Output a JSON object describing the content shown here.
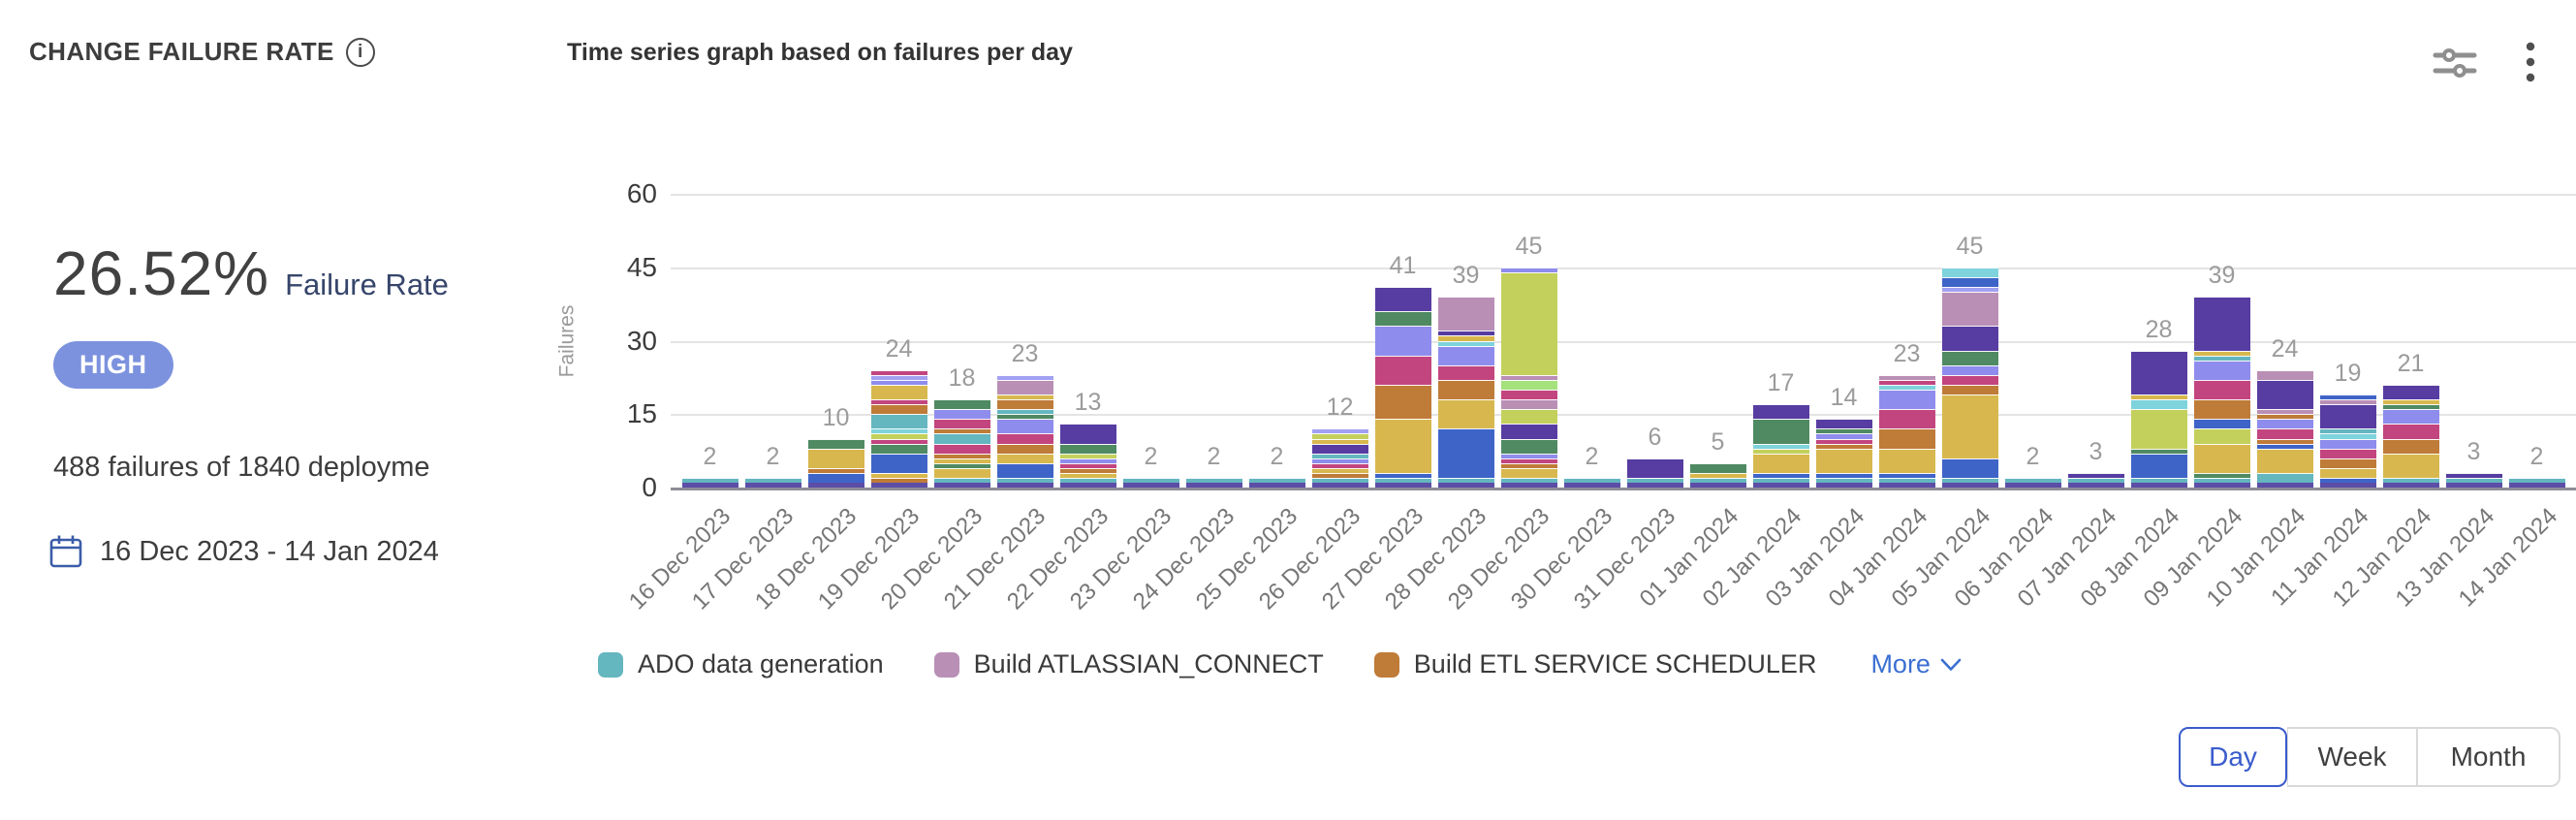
{
  "header": {
    "title": "CHANGE FAILURE RATE",
    "subtitle": "Time series graph based on failures per day"
  },
  "stats": {
    "rate_value": "26.52%",
    "rate_label": "Failure Rate",
    "severity": "HIGH",
    "severity_color": "#7c92de",
    "summary": "488 failures of 1840 deployme",
    "date_range": "16 Dec 2023 - 14 Jan 2024"
  },
  "chart_data": {
    "type": "bar",
    "stacked": true,
    "title": "Time series graph based on failures per day",
    "ylabel": "Failures",
    "yticks": [
      0,
      15,
      30,
      45,
      60
    ],
    "ylim": [
      0,
      60
    ],
    "grid": true,
    "bar_value_labels": true,
    "categories": [
      "16 Dec 2023",
      "17 Dec 2023",
      "18 Dec 2023",
      "19 Dec 2023",
      "20 Dec 2023",
      "21 Dec 2023",
      "22 Dec 2023",
      "23 Dec 2023",
      "24 Dec 2023",
      "25 Dec 2023",
      "26 Dec 2023",
      "27 Dec 2023",
      "28 Dec 2023",
      "29 Dec 2023",
      "30 Dec 2023",
      "31 Dec 2023",
      "01 Jan 2024",
      "02 Jan 2024",
      "03 Jan 2024",
      "04 Jan 2024",
      "05 Jan 2024",
      "06 Jan 2024",
      "07 Jan 2024",
      "08 Jan 2024",
      "09 Jan 2024",
      "10 Jan 2024",
      "11 Jan 2024",
      "12 Jan 2024",
      "13 Jan 2024",
      "14 Jan 2024"
    ],
    "totals": [
      2,
      2,
      10,
      24,
      18,
      23,
      13,
      2,
      2,
      2,
      12,
      41,
      39,
      45,
      2,
      6,
      5,
      17,
      14,
      23,
      45,
      2,
      3,
      28,
      39,
      24,
      19,
      21,
      3,
      2
    ],
    "palette": {
      "purple": "#5c4ea6",
      "teal": "#64b6bf",
      "blue": "#3f64c8",
      "gold": "#d8b84e",
      "orange": "#bf7b38",
      "magenta": "#c2457f",
      "periwinkle": "#8e8cec",
      "green": "#4f8a63",
      "darkpurple": "#573ca1",
      "mauve": "#b98fb5",
      "lime": "#c3d05c",
      "cyan": "#7ed3dc",
      "lightgreen": "#a5e17d",
      "lavender": "#a2a0f2"
    },
    "bars": [
      [
        [
          "purple",
          1
        ],
        [
          "teal",
          1
        ]
      ],
      [
        [
          "purple",
          1
        ],
        [
          "teal",
          1
        ]
      ],
      [
        [
          "purple",
          1
        ],
        [
          "blue",
          2
        ],
        [
          "orange",
          1
        ],
        [
          "gold",
          4
        ],
        [
          "green",
          2
        ]
      ],
      [
        [
          "purple",
          1
        ],
        [
          "orange",
          1
        ],
        [
          "gold",
          1
        ],
        [
          "blue",
          4
        ],
        [
          "green",
          2
        ],
        [
          "magenta",
          1
        ],
        [
          "lime",
          1
        ],
        [
          "cyan",
          1
        ],
        [
          "teal",
          3
        ],
        [
          "orange",
          2
        ],
        [
          "magenta",
          1
        ],
        [
          "gold",
          3
        ],
        [
          "periwinkle",
          1
        ],
        [
          "lavender",
          1
        ],
        [
          "magenta",
          1
        ]
      ],
      [
        [
          "purple",
          1
        ],
        [
          "teal",
          1
        ],
        [
          "gold",
          2
        ],
        [
          "green",
          1
        ],
        [
          "gold",
          1
        ],
        [
          "orange",
          1
        ],
        [
          "magenta",
          2
        ],
        [
          "teal",
          2
        ],
        [
          "orange",
          1
        ],
        [
          "magenta",
          2
        ],
        [
          "periwinkle",
          2
        ],
        [
          "green",
          2
        ]
      ],
      [
        [
          "purple",
          1
        ],
        [
          "teal",
          1
        ],
        [
          "blue",
          3
        ],
        [
          "gold",
          2
        ],
        [
          "orange",
          2
        ],
        [
          "magenta",
          2
        ],
        [
          "periwinkle",
          3
        ],
        [
          "green",
          1
        ],
        [
          "teal",
          1
        ],
        [
          "orange",
          2
        ],
        [
          "gold",
          1
        ],
        [
          "mauve",
          3
        ],
        [
          "lavender",
          1
        ]
      ],
      [
        [
          "purple",
          1
        ],
        [
          "teal",
          1
        ],
        [
          "gold",
          1
        ],
        [
          "orange",
          1
        ],
        [
          "magenta",
          1
        ],
        [
          "periwinkle",
          1
        ],
        [
          "lime",
          1
        ],
        [
          "green",
          2
        ],
        [
          "darkpurple",
          4
        ]
      ],
      [
        [
          "purple",
          1
        ],
        [
          "teal",
          1
        ]
      ],
      [
        [
          "purple",
          1
        ],
        [
          "teal",
          1
        ]
      ],
      [
        [
          "purple",
          1
        ],
        [
          "teal",
          1
        ]
      ],
      [
        [
          "purple",
          1
        ],
        [
          "teal",
          1
        ],
        [
          "orange",
          1
        ],
        [
          "gold",
          1
        ],
        [
          "magenta",
          1
        ],
        [
          "periwinkle",
          1
        ],
        [
          "teal",
          1
        ],
        [
          "darkpurple",
          2
        ],
        [
          "gold",
          1
        ],
        [
          "lime",
          1
        ],
        [
          "lavender",
          1
        ]
      ],
      [
        [
          "purple",
          1
        ],
        [
          "teal",
          1
        ],
        [
          "blue",
          1
        ],
        [
          "gold",
          11
        ],
        [
          "orange",
          7
        ],
        [
          "magenta",
          6
        ],
        [
          "periwinkle",
          6
        ],
        [
          "green",
          3
        ],
        [
          "darkpurple",
          5
        ]
      ],
      [
        [
          "purple",
          1
        ],
        [
          "teal",
          1
        ],
        [
          "blue",
          10
        ],
        [
          "gold",
          6
        ],
        [
          "orange",
          4
        ],
        [
          "magenta",
          3
        ],
        [
          "periwinkle",
          4
        ],
        [
          "cyan",
          1
        ],
        [
          "gold",
          1
        ],
        [
          "darkpurple",
          1
        ],
        [
          "mauve",
          7
        ]
      ],
      [
        [
          "purple",
          1
        ],
        [
          "teal",
          1
        ],
        [
          "gold",
          2
        ],
        [
          "orange",
          1
        ],
        [
          "magenta",
          1
        ],
        [
          "periwinkle",
          1
        ],
        [
          "green",
          3
        ],
        [
          "darkpurple",
          3
        ],
        [
          "lime",
          3
        ],
        [
          "mauve",
          2
        ],
        [
          "magenta",
          2
        ],
        [
          "lightgreen",
          2
        ],
        [
          "mauve",
          1
        ],
        [
          "lime",
          21
        ],
        [
          "periwinkle",
          1
        ]
      ],
      [
        [
          "purple",
          1
        ],
        [
          "teal",
          1
        ]
      ],
      [
        [
          "purple",
          1
        ],
        [
          "teal",
          1
        ],
        [
          "darkpurple",
          4
        ]
      ],
      [
        [
          "purple",
          1
        ],
        [
          "teal",
          1
        ],
        [
          "gold",
          1
        ],
        [
          "green",
          2
        ]
      ],
      [
        [
          "purple",
          1
        ],
        [
          "teal",
          1
        ],
        [
          "blue",
          1
        ],
        [
          "gold",
          4
        ],
        [
          "lime",
          1
        ],
        [
          "cyan",
          1
        ],
        [
          "green",
          5
        ],
        [
          "darkpurple",
          3
        ]
      ],
      [
        [
          "purple",
          1
        ],
        [
          "teal",
          1
        ],
        [
          "blue",
          1
        ],
        [
          "gold",
          5
        ],
        [
          "orange",
          1
        ],
        [
          "magenta",
          1
        ],
        [
          "periwinkle",
          1
        ],
        [
          "green",
          1
        ],
        [
          "darkpurple",
          2
        ]
      ],
      [
        [
          "purple",
          1
        ],
        [
          "teal",
          1
        ],
        [
          "blue",
          1
        ],
        [
          "gold",
          5
        ],
        [
          "orange",
          4
        ],
        [
          "magenta",
          4
        ],
        [
          "periwinkle",
          4
        ],
        [
          "cyan",
          1
        ],
        [
          "magenta",
          1
        ],
        [
          "mauve",
          1
        ]
      ],
      [
        [
          "purple",
          1
        ],
        [
          "teal",
          1
        ],
        [
          "blue",
          4
        ],
        [
          "gold",
          13
        ],
        [
          "orange",
          2
        ],
        [
          "magenta",
          2
        ],
        [
          "periwinkle",
          2
        ],
        [
          "green",
          3
        ],
        [
          "darkpurple",
          5
        ],
        [
          "mauve",
          7
        ],
        [
          "lavender",
          1
        ],
        [
          "blue",
          2
        ],
        [
          "cyan",
          2
        ]
      ],
      [
        [
          "purple",
          1
        ],
        [
          "teal",
          1
        ]
      ],
      [
        [
          "purple",
          1
        ],
        [
          "teal",
          1
        ],
        [
          "darkpurple",
          1
        ]
      ],
      [
        [
          "purple",
          1
        ],
        [
          "teal",
          1
        ],
        [
          "blue",
          5
        ],
        [
          "green",
          1
        ],
        [
          "lime",
          8
        ],
        [
          "cyan",
          2
        ],
        [
          "gold",
          1
        ],
        [
          "darkpurple",
          9
        ]
      ],
      [
        [
          "purple",
          1
        ],
        [
          "teal",
          1
        ],
        [
          "green",
          1
        ],
        [
          "gold",
          6
        ],
        [
          "lime",
          3
        ],
        [
          "blue",
          2
        ],
        [
          "orange",
          4
        ],
        [
          "magenta",
          4
        ],
        [
          "periwinkle",
          4
        ],
        [
          "teal",
          1
        ],
        [
          "gold",
          1
        ],
        [
          "darkpurple",
          11
        ]
      ],
      [
        [
          "purple",
          1
        ],
        [
          "teal",
          2
        ],
        [
          "gold",
          5
        ],
        [
          "blue",
          1
        ],
        [
          "orange",
          1
        ],
        [
          "magenta",
          2
        ],
        [
          "periwinkle",
          2
        ],
        [
          "orange",
          1
        ],
        [
          "mauve",
          1
        ],
        [
          "darkpurple",
          6
        ],
        [
          "mauve",
          2
        ]
      ],
      [
        [
          "purple",
          1
        ],
        [
          "blue",
          1
        ],
        [
          "gold",
          2
        ],
        [
          "orange",
          2
        ],
        [
          "magenta",
          2
        ],
        [
          "periwinkle",
          2
        ],
        [
          "cyan",
          1
        ],
        [
          "teal",
          1
        ],
        [
          "darkpurple",
          5
        ],
        [
          "mauve",
          1
        ],
        [
          "blue",
          1
        ]
      ],
      [
        [
          "purple",
          1
        ],
        [
          "teal",
          1
        ],
        [
          "gold",
          5
        ],
        [
          "orange",
          3
        ],
        [
          "magenta",
          3
        ],
        [
          "periwinkle",
          3
        ],
        [
          "green",
          1
        ],
        [
          "gold",
          1
        ],
        [
          "darkpurple",
          3
        ]
      ],
      [
        [
          "purple",
          1
        ],
        [
          "teal",
          1
        ],
        [
          "darkpurple",
          1
        ]
      ],
      [
        [
          "purple",
          1
        ],
        [
          "teal",
          1
        ]
      ]
    ],
    "legend": [
      {
        "label": "ADO data generation",
        "color": "#64b6bf"
      },
      {
        "label": "Build ATLASSIAN_CONNECT",
        "color": "#b98fb5"
      },
      {
        "label": "Build ETL SERVICE SCHEDULER",
        "color": "#bf7b38"
      }
    ],
    "legend_position": "bottom",
    "legend_more_label": "More"
  },
  "icons": {
    "info": "i",
    "filter": "sliders-horizontal",
    "kebab": "vertical-ellipsis",
    "calendar": "calendar-outline",
    "chevron_down": "v"
  },
  "controls": {
    "granularity": {
      "options": [
        "Day",
        "Week",
        "Month"
      ],
      "selected": "Day"
    }
  }
}
